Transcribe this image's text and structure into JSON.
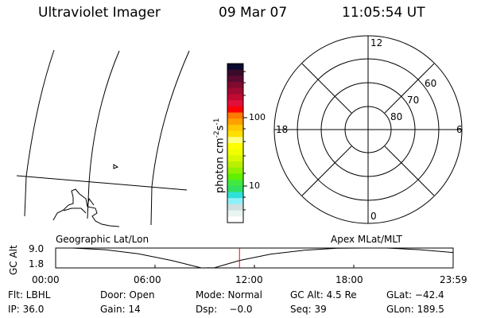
{
  "header": {
    "title": "Ultraviolet Imager",
    "date": "09 Mar 07",
    "time": "11:05:54 UT"
  },
  "colorbar": {
    "label": "photon cm",
    "label_sup1": "-2",
    "label_mid": "s",
    "label_sup2": "-1",
    "ticks": [
      "100",
      "10"
    ],
    "colors": [
      "#0a0a30",
      "#3a0a2a",
      "#5a0a30",
      "#800a30",
      "#a00a30",
      "#c00a30",
      "#e0103a",
      "#ff0000",
      "#ff7a00",
      "#ffa000",
      "#ffc800",
      "#ffe000",
      "#ffff80",
      "#ffff00",
      "#f0ff00",
      "#d8f800",
      "#b8f000",
      "#90f000",
      "#60f000",
      "#40e840",
      "#30e060",
      "#30e0d8",
      "#90f0f8",
      "#d0e0e0",
      "#e8f4f0",
      "#ffffff"
    ]
  },
  "polar": {
    "mlt_labels": {
      "top": "12",
      "bottom": "0",
      "left": "18",
      "right": "6"
    },
    "mlat_labels": [
      "80",
      "70",
      "60"
    ]
  },
  "map": {
    "marker": "triangle-marker"
  },
  "chart_data": {
    "type": "line",
    "ylabel": "GC Alt",
    "yticks": [
      "9.0",
      "1.8"
    ],
    "ylim": [
      1.8,
      9.0
    ],
    "xticks": [
      "00:00",
      "06:00",
      "12:00",
      "18:00",
      "23:59"
    ],
    "xlim_hours": [
      0,
      24
    ],
    "left_label": "Geographic Lat/Lon",
    "right_label": "Apex MLat/MLT",
    "series": [
      {
        "x": [
          0,
          1,
          3,
          5,
          7,
          8.8,
          9.6,
          11.1,
          13,
          15,
          17,
          18.5,
          20,
          22,
          24
        ],
        "y": [
          9.0,
          9.0,
          8.4,
          6.9,
          4.5,
          1.8,
          1.9,
          4.5,
          6.8,
          8.2,
          8.9,
          9.0,
          9.0,
          8.4,
          7.4
        ],
        "color": "#000000"
      }
    ],
    "current_time_hours": 11.1,
    "current_time_color": "#ff0000"
  },
  "status": {
    "row1": [
      "Flt: LBHL",
      "Door: Open",
      "Mode: Normal",
      "GC Alt: 4.5 Re",
      "GLat: −42.4"
    ],
    "row2": [
      "IP: 36.0",
      "Gain: 14",
      "Dsp:    −0.0",
      "Seq: 39",
      "GLon: 189.5"
    ]
  }
}
